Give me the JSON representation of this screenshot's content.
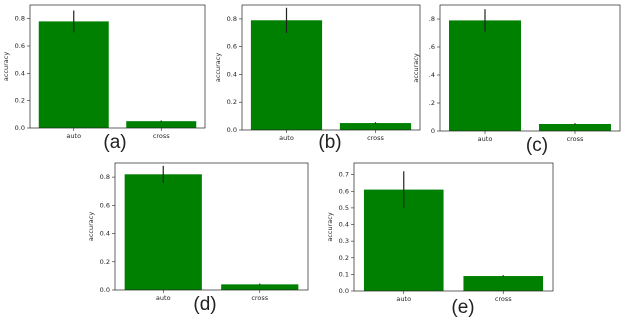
{
  "chart_data": [
    {
      "type": "bar",
      "label": "(a)",
      "ylabel": "accuracy",
      "categories": [
        "auto",
        "cross"
      ],
      "values": [
        0.78,
        0.05
      ],
      "errors": [
        0.08,
        0.005
      ],
      "color": "#008000",
      "ylim": [
        0,
        0.9
      ],
      "yticks": [
        {
          "value": 0,
          "label": "0.0"
        },
        0.2,
        0.4,
        0.6,
        0.8
      ]
    },
    {
      "type": "bar",
      "label": "(b)",
      "ylabel": "accuracy",
      "categories": [
        "auto",
        "cross"
      ],
      "values": [
        0.79,
        0.05
      ],
      "errors": [
        0.09,
        0.006
      ],
      "color": "#008000",
      "ylim": [
        0,
        0.9
      ],
      "yticks": [
        {
          "value": 0,
          "label": "0.0"
        },
        0.2,
        0.4,
        0.6,
        0.8
      ]
    },
    {
      "type": "bar",
      "label": "(c)",
      "ylabel": "accuracy",
      "categories": [
        "auto",
        "cross"
      ],
      "values": [
        0.79,
        0.05
      ],
      "errors": [
        0.08,
        0.006
      ],
      "color": "#008000",
      "ylim": [
        0,
        0.9
      ],
      "yticks": [
        0,
        {
          "value": 0.2,
          "label": ".2"
        },
        {
          "value": 0.4,
          "label": ".4"
        },
        {
          "value": 0.6,
          "label": ".6"
        },
        {
          "value": 0.8,
          "label": ".8"
        }
      ]
    },
    {
      "type": "bar",
      "label": "(d)",
      "ylabel": "accuracy",
      "categories": [
        "auto",
        "cross"
      ],
      "values": [
        0.82,
        0.04
      ],
      "errors": [
        0.06,
        0.005
      ],
      "color": "#008000",
      "ylim": [
        0,
        0.9
      ],
      "yticks": [
        {
          "value": 0,
          "label": "0.0"
        },
        0.2,
        0.4,
        0.6,
        0.8
      ]
    },
    {
      "type": "bar",
      "label": "(e)",
      "ylabel": "accuracy",
      "categories": [
        "auto",
        "cross"
      ],
      "values": [
        0.61,
        0.09
      ],
      "errors": [
        0.11,
        0.005
      ],
      "color": "#008000",
      "ylim": [
        0,
        0.77
      ],
      "yticks": [
        {
          "value": 0,
          "label": "0.0"
        },
        0.1,
        0.2,
        0.3,
        0.4,
        0.5,
        0.6,
        0.7
      ]
    }
  ]
}
